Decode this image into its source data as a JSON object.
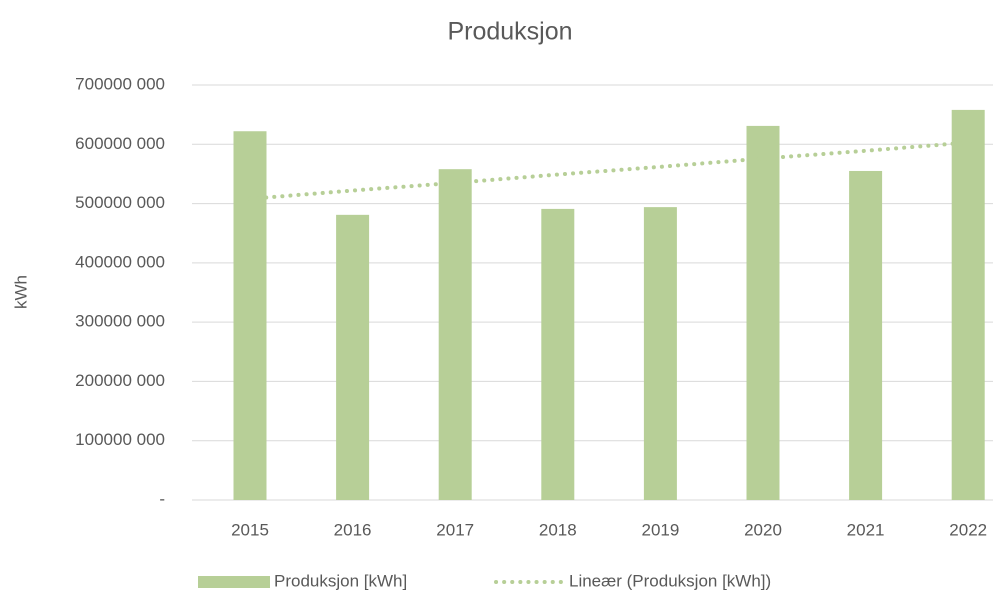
{
  "chart_data": {
    "type": "bar",
    "title": "Produksjon",
    "y_label": "kWh",
    "categories": [
      "2015",
      "2016",
      "2017",
      "2018",
      "2019",
      "2020",
      "2021",
      "2022"
    ],
    "series": [
      {
        "name": "Produksjon [kWh]",
        "color": "#b7cf97",
        "values": [
          622000000,
          481000000,
          558000000,
          491000000,
          494000000,
          631000000,
          555000000,
          658000000
        ]
      },
      {
        "name": "Lineær (Produksjon [kWh])",
        "color": "#b7cf97",
        "type": "trendline",
        "values": [
          508000000,
          522000000,
          535000000,
          549000000,
          562000000,
          576000000,
          589000000,
          603000000
        ]
      }
    ],
    "ylim": [
      0,
      700000000
    ],
    "yticks": [
      {
        "value": 0,
        "label": "-"
      },
      {
        "value": 100000000,
        "label": "100000 000"
      },
      {
        "value": 200000000,
        "label": "200000 000"
      },
      {
        "value": 300000000,
        "label": "300000 000"
      },
      {
        "value": 400000000,
        "label": "400000 000"
      },
      {
        "value": 500000000,
        "label": "500000 000"
      },
      {
        "value": 600000000,
        "label": "600000 000"
      },
      {
        "value": 700000000,
        "label": "700000 000"
      }
    ],
    "grid": true,
    "legend": "bottom"
  }
}
